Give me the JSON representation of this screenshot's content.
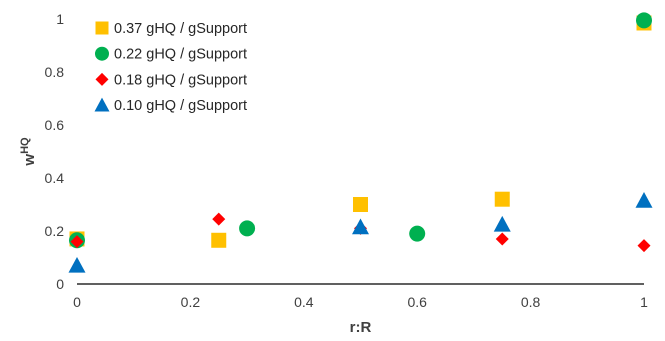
{
  "chart_data": {
    "type": "scatter",
    "xlabel": "r:R",
    "ylabel_main": "w",
    "ylabel_sup": "HQ",
    "xlim": [
      0,
      1
    ],
    "ylim": [
      0,
      1
    ],
    "x_ticks": [
      0,
      0.2,
      0.4,
      0.6,
      0.8,
      1
    ],
    "x_tick_labels": [
      "0",
      "0.2",
      "0.4",
      "0.6",
      "0.8",
      "1"
    ],
    "y_ticks": [
      0,
      0.2,
      0.4,
      0.6,
      0.8,
      1
    ],
    "y_tick_labels": [
      "0",
      "0.2",
      "0.4",
      "0.6",
      "0.8",
      "1"
    ],
    "grid": false,
    "legend_position": "top-left",
    "series": [
      {
        "name": "0.37 gHQ / gSupport",
        "marker": "square",
        "color": "#FFC000",
        "points": [
          [
            0,
            0.17
          ],
          [
            0.25,
            0.165
          ],
          [
            0.5,
            0.3
          ],
          [
            0.75,
            0.32
          ],
          [
            1,
            0.985
          ]
        ]
      },
      {
        "name": "0.22 gHQ / gSupport",
        "marker": "circle",
        "color": "#00B050",
        "points": [
          [
            0,
            0.165
          ],
          [
            0.3,
            0.21
          ],
          [
            0.6,
            0.19
          ],
          [
            1,
            0.995
          ]
        ]
      },
      {
        "name": "0.18 gHQ / gSupport",
        "marker": "diamond",
        "color": "#FF0000",
        "points": [
          [
            0,
            0.16
          ],
          [
            0.25,
            0.245
          ],
          [
            0.5,
            0.21
          ],
          [
            0.75,
            0.17
          ],
          [
            1,
            0.145
          ]
        ]
      },
      {
        "name": "0.10 gHQ / gSupport",
        "marker": "triangle",
        "color": "#0070C0",
        "points": [
          [
            0,
            0.07
          ],
          [
            0.5,
            0.215
          ],
          [
            0.75,
            0.225
          ],
          [
            1,
            0.315
          ]
        ]
      }
    ]
  }
}
